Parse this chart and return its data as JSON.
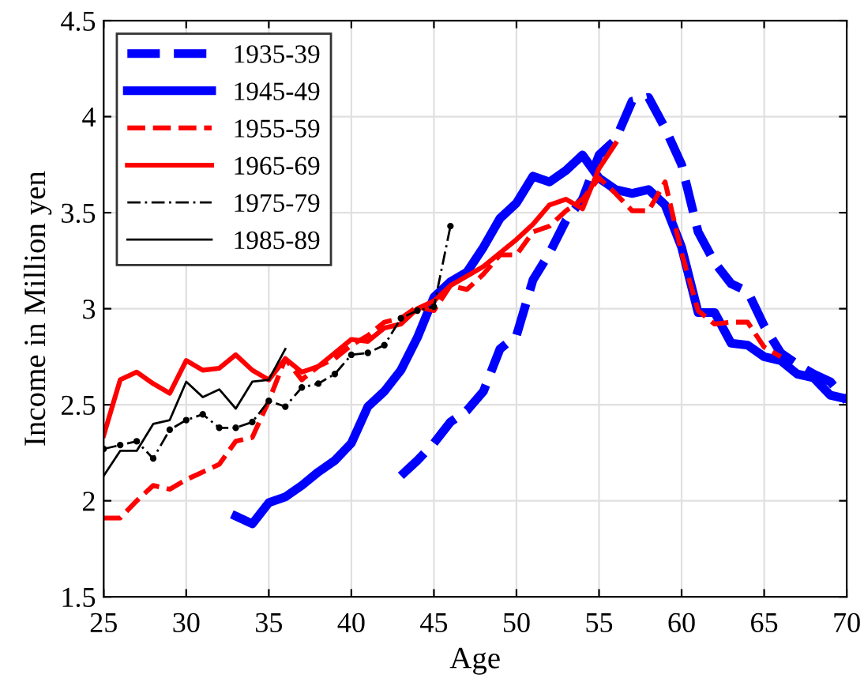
{
  "chart_data": {
    "type": "line",
    "xlabel": "Age",
    "ylabel": "Income in Million yen",
    "xlim": [
      25,
      70
    ],
    "xticks": [
      25,
      30,
      35,
      40,
      45,
      50,
      55,
      60,
      65,
      70
    ],
    "ylim": [
      1.5,
      4.5
    ],
    "yticks": [
      1.5,
      2,
      2.5,
      3,
      3.5,
      4,
      4.5
    ],
    "grid": true,
    "legend": "top left",
    "series": [
      {
        "name": "1935-39",
        "color": "#0000ff",
        "line_style": "dashed",
        "x": [
          43,
          44,
          45,
          46,
          47,
          48,
          49,
          50,
          51,
          52,
          53,
          54,
          55,
          56,
          57,
          58,
          59,
          60,
          61,
          62,
          63,
          64,
          65,
          66,
          67,
          68,
          69,
          70
        ],
        "values": [
          2.13,
          2.21,
          2.3,
          2.41,
          2.47,
          2.57,
          2.79,
          2.86,
          3.15,
          3.29,
          3.46,
          3.57,
          3.8,
          3.88,
          4.08,
          4.1,
          3.94,
          3.75,
          3.4,
          3.24,
          3.13,
          3.09,
          2.91,
          2.77,
          2.71,
          2.66,
          2.62,
          2.52
        ]
      },
      {
        "name": "1945-49",
        "color": "#0000ff",
        "line_style": "solid",
        "x": [
          33,
          34,
          35,
          36,
          37,
          38,
          39,
          40,
          41,
          42,
          43,
          44,
          45,
          46,
          47,
          48,
          49,
          50,
          51,
          52,
          53,
          54,
          55,
          56,
          57,
          58,
          59,
          60,
          61,
          62,
          63,
          64,
          65,
          66,
          67,
          68,
          69,
          70
        ],
        "values": [
          1.92,
          1.88,
          1.99,
          2.02,
          2.08,
          2.15,
          2.21,
          2.3,
          2.49,
          2.57,
          2.68,
          2.85,
          3.06,
          3.14,
          3.19,
          3.32,
          3.47,
          3.55,
          3.69,
          3.66,
          3.72,
          3.8,
          3.68,
          3.62,
          3.6,
          3.62,
          3.54,
          3.32,
          2.98,
          2.98,
          2.82,
          2.81,
          2.75,
          2.73,
          2.66,
          2.64,
          2.55,
          2.53
        ]
      },
      {
        "name": "1955-59",
        "color": "#ff0000",
        "line_style": "dashed",
        "x": [
          25,
          26,
          27,
          28,
          29,
          30,
          31,
          32,
          33,
          34,
          35,
          36,
          37,
          38,
          39,
          40,
          41,
          42,
          43,
          44,
          45,
          46,
          47,
          48,
          49,
          50,
          51,
          52,
          53,
          54,
          55,
          56,
          57,
          58,
          59,
          60,
          61,
          62,
          63,
          64,
          65,
          66
        ],
        "values": [
          1.91,
          1.91,
          2.0,
          2.08,
          2.06,
          2.11,
          2.15,
          2.19,
          2.31,
          2.33,
          2.52,
          2.74,
          2.63,
          2.7,
          2.74,
          2.81,
          2.86,
          2.93,
          2.95,
          3.01,
          2.99,
          3.12,
          3.1,
          3.18,
          3.28,
          3.28,
          3.4,
          3.43,
          3.51,
          3.57,
          3.68,
          3.6,
          3.51,
          3.51,
          3.66,
          3.29,
          2.99,
          2.92,
          2.93,
          2.93,
          2.8,
          2.75
        ]
      },
      {
        "name": "1965-69",
        "color": "#ff0000",
        "line_style": "solid",
        "x": [
          25,
          26,
          27,
          28,
          29,
          30,
          31,
          32,
          33,
          34,
          35,
          36,
          37,
          38,
          39,
          40,
          41,
          42,
          43,
          44,
          45,
          46,
          47,
          48,
          49,
          50,
          51,
          52,
          53,
          54,
          55,
          56
        ],
        "values": [
          2.34,
          2.63,
          2.67,
          2.61,
          2.56,
          2.73,
          2.68,
          2.69,
          2.76,
          2.68,
          2.63,
          2.74,
          2.67,
          2.7,
          2.77,
          2.84,
          2.83,
          2.9,
          2.92,
          3.0,
          3.04,
          3.12,
          3.17,
          3.22,
          3.29,
          3.36,
          3.44,
          3.54,
          3.57,
          3.52,
          3.73,
          3.86
        ]
      },
      {
        "name": "1975-79",
        "color": "#000000",
        "line_style": "dashed",
        "marker": "circle",
        "x": [
          25,
          26,
          27,
          28,
          29,
          30,
          31,
          32,
          33,
          34,
          35,
          36,
          37,
          38,
          39,
          40,
          41,
          42,
          43,
          44,
          45,
          46
        ],
        "values": [
          2.27,
          2.29,
          2.31,
          2.22,
          2.37,
          2.42,
          2.45,
          2.38,
          2.38,
          2.41,
          2.52,
          2.49,
          2.59,
          2.61,
          2.66,
          2.76,
          2.77,
          2.81,
          2.95,
          2.99,
          3.01,
          3.43
        ]
      },
      {
        "name": "1985-89",
        "color": "#000000",
        "line_style": "solid",
        "x": [
          25,
          26,
          27,
          28,
          29,
          30,
          31,
          32,
          33,
          34,
          35,
          36
        ],
        "values": [
          2.13,
          2.26,
          2.26,
          2.4,
          2.42,
          2.62,
          2.54,
          2.58,
          2.48,
          2.62,
          2.63,
          2.79
        ]
      }
    ]
  }
}
